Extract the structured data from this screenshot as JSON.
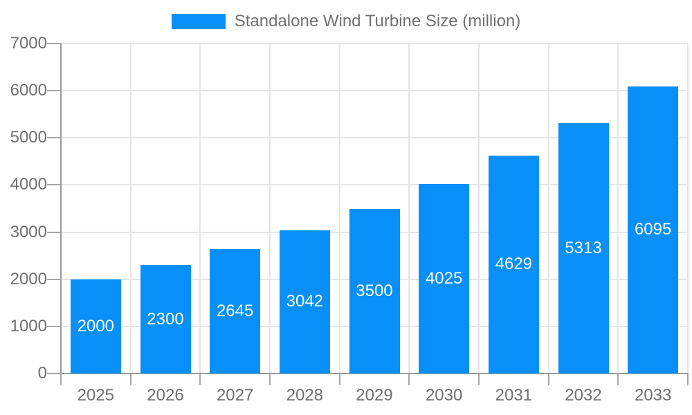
{
  "legend": {
    "label": "Standalone Wind Turbine Size (million)"
  },
  "colors": {
    "bar": "#0890F8",
    "bar_label": "#FFFFFF",
    "axis_line": "#999999",
    "tick": "#A6A6A6",
    "gridline": "#E5E5E5",
    "axis_text": "#707070",
    "background": "#FFFFFF"
  },
  "chart_data": {
    "type": "bar",
    "title": "Standalone Wind Turbine Size (million)",
    "categories": [
      "2025",
      "2026",
      "2027",
      "2028",
      "2029",
      "2030",
      "2031",
      "2032",
      "2033"
    ],
    "values": [
      2000,
      2300,
      2645,
      3042,
      3500,
      4025,
      4629,
      5313,
      6095
    ],
    "series": [
      {
        "name": "Standalone Wind Turbine Size (million)",
        "values": [
          2000,
          2300,
          2645,
          3042,
          3500,
          4025,
          4629,
          5313,
          6095
        ]
      }
    ],
    "xlabel": "",
    "ylabel": "",
    "ylim": [
      0,
      7000
    ],
    "ytick_step": 1000,
    "ytick_labels": [
      "0",
      "1000",
      "2000",
      "3000",
      "4000",
      "5000",
      "6000",
      "7000"
    ],
    "grid": true,
    "legend_position": "top-center",
    "value_labels": "inside-center"
  }
}
